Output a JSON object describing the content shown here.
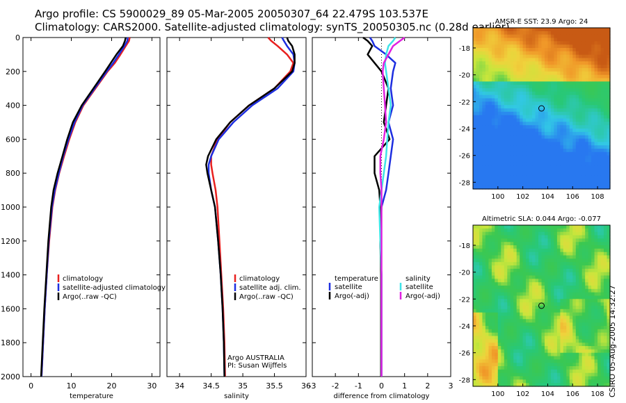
{
  "header": {
    "line1": "Argo profile: CS 5900029_89 05-Mar-2005 20050307_64 22.479S 103.537E",
    "line2": "Climatology: CARS2000. Satellite-adjusted climatology: synTS_20050305.nc (0.28d earlier)"
  },
  "side_label": "CSIRO 05-Aug-2005 14:32:27",
  "colors": {
    "climatology": "#e8201f",
    "satellite": "#1d2ee0",
    "argo": "#000000",
    "satellite_diff_s": "#3fe3e8",
    "argo_diff_s": "#e020e0",
    "frame": "#000000"
  },
  "chart_data": [
    {
      "type": "line",
      "panel": "temperature",
      "xlabel": "temperature",
      "xlim": [
        -2,
        32
      ],
      "xticks": [
        0,
        10,
        20,
        30
      ],
      "ylim": [
        2000,
        0
      ],
      "yticks": [
        0,
        200,
        400,
        600,
        800,
        1000,
        1200,
        1400,
        1600,
        1800,
        2000
      ],
      "depth": [
        0,
        20,
        50,
        100,
        150,
        200,
        300,
        400,
        500,
        600,
        700,
        800,
        900,
        1000,
        1200,
        1400,
        1600,
        1800,
        2000
      ],
      "series": [
        {
          "name": "climatology",
          "color": "climatology",
          "values": [
            24.5,
            24.3,
            23.5,
            22.2,
            20.8,
            19.0,
            16.0,
            13.0,
            11.0,
            9.5,
            8.2,
            7.0,
            6.0,
            5.3,
            4.5,
            3.9,
            3.4,
            3.0,
            2.6
          ]
        },
        {
          "name": "satellite-adjusted climatology",
          "color": "satellite",
          "values": [
            24.0,
            23.9,
            23.2,
            21.8,
            20.4,
            18.8,
            15.8,
            12.8,
            10.8,
            9.3,
            8.0,
            6.9,
            5.9,
            5.2,
            4.4,
            3.9,
            3.4,
            3.0,
            2.6
          ]
        },
        {
          "name": "Argo(..raw -QC)",
          "color": "argo",
          "values": [
            23.5,
            23.3,
            22.8,
            21.2,
            19.8,
            18.4,
            15.5,
            12.6,
            10.4,
            9.0,
            7.8,
            6.6,
            5.6,
            5.0,
            4.3,
            3.8,
            3.3,
            2.9,
            2.5
          ]
        }
      ],
      "legend": [
        "climatology",
        "satellite-adjusted climatology",
        "Argo(..raw -QC)"
      ]
    },
    {
      "type": "line",
      "panel": "salinity",
      "xlabel": "salinity",
      "xlim": [
        33.8,
        36.0
      ],
      "xticks": [
        34,
        34.5,
        35,
        35.5,
        36
      ],
      "ylim": [
        2000,
        0
      ],
      "depth": [
        0,
        20,
        50,
        100,
        150,
        200,
        300,
        400,
        500,
        600,
        700,
        750,
        800,
        900,
        1000,
        1200,
        1400,
        1600,
        1800,
        2000
      ],
      "series": [
        {
          "name": "climatology",
          "color": "climatology",
          "values": [
            35.4,
            35.45,
            35.55,
            35.7,
            35.8,
            35.75,
            35.5,
            35.1,
            34.8,
            34.6,
            34.5,
            34.5,
            34.52,
            34.57,
            34.6,
            34.63,
            34.66,
            34.69,
            34.71,
            34.72
          ]
        },
        {
          "name": "satellite adj. clim.",
          "color": "satellite",
          "values": [
            35.62,
            35.65,
            35.7,
            35.8,
            35.82,
            35.8,
            35.55,
            35.15,
            34.85,
            34.62,
            34.5,
            34.46,
            34.46,
            34.5,
            34.56,
            34.61,
            34.65,
            34.68,
            34.7,
            34.71
          ]
        },
        {
          "name": "Argo(..raw -QC)",
          "color": "argo",
          "values": [
            35.7,
            35.72,
            35.78,
            35.82,
            35.82,
            35.78,
            35.5,
            35.1,
            34.8,
            34.58,
            34.45,
            34.42,
            34.44,
            34.5,
            34.56,
            34.61,
            34.65,
            34.68,
            34.7,
            34.71
          ]
        }
      ],
      "legend": [
        "climatology",
        "satellite adj. clim.",
        "Argo(..raw -QC)"
      ],
      "annotation": [
        "Argo AUSTRALIA",
        "PI: Susan Wijffels"
      ]
    },
    {
      "type": "line",
      "panel": "difference",
      "xlabel": "difference from climatology",
      "xlim": [
        -3,
        3
      ],
      "xticks": [
        -3,
        -2,
        -1,
        0,
        1,
        2,
        3
      ],
      "ylim": [
        2000,
        0
      ],
      "depth": [
        0,
        20,
        50,
        100,
        150,
        200,
        300,
        400,
        500,
        600,
        700,
        800,
        900,
        1000,
        1200,
        1400,
        1600,
        1800,
        2000
      ],
      "series": [
        {
          "name": "temperature satellite",
          "color": "satellite",
          "values": [
            -0.5,
            -0.4,
            -0.3,
            0.2,
            0.6,
            0.5,
            0.4,
            0.5,
            0.3,
            0.5,
            0.4,
            0.3,
            0.2,
            0.0,
            -0.05,
            0.0,
            0.0,
            0.0,
            0.0
          ]
        },
        {
          "name": "temperature Argo(-adj)",
          "color": "argo",
          "values": [
            -0.8,
            -0.6,
            -0.4,
            -0.6,
            -0.3,
            0.0,
            0.3,
            0.2,
            0.1,
            0.35,
            -0.3,
            -0.3,
            -0.1,
            -0.05,
            -0.05,
            -0.02,
            -0.02,
            -0.02,
            -0.02
          ]
        },
        {
          "name": "salinity satellite",
          "color": "satellite_diff_s",
          "values": [
            0.6,
            0.5,
            0.3,
            0.2,
            0.15,
            0.2,
            0.3,
            0.4,
            0.3,
            0.25,
            0.2,
            0.1,
            0.0,
            -0.1,
            -0.05,
            0.0,
            0.0,
            0.0,
            0.0
          ]
        },
        {
          "name": "salinity Argo(-adj)",
          "color": "argo_diff_s",
          "values": [
            1.0,
            0.8,
            0.5,
            0.3,
            0.1,
            0.05,
            0.1,
            0.15,
            0.2,
            0.1,
            -0.05,
            -0.05,
            0.0,
            0.0,
            0.0,
            0.0,
            0.0,
            0.0,
            0.0
          ]
        }
      ],
      "legend_left": {
        "title": "temperature",
        "items": [
          "satellite",
          "Argo(-adj)"
        ]
      },
      "legend_right": {
        "title": "salinity",
        "items": [
          "satellite",
          "Argo(-adj)"
        ]
      }
    },
    {
      "type": "heatmap",
      "panel": "sst_map",
      "title": "AMSR-E SST: 23.9 Argo: 24",
      "xticks": [
        100,
        102,
        104,
        106,
        108
      ],
      "yticks": [
        -18,
        -20,
        -22,
        -24,
        -26,
        -28
      ],
      "xlim": [
        98,
        109
      ],
      "ylim": [
        -28.5,
        -16.5
      ],
      "marker": {
        "lon": 103.5,
        "lat": -22.5
      }
    },
    {
      "type": "heatmap",
      "panel": "sla_map",
      "title": "Altimetric SLA: 0.044 Argo: -0.077",
      "xticks": [
        100,
        102,
        104,
        106,
        108
      ],
      "yticks": [
        -18,
        -20,
        -22,
        -24,
        -26,
        -28
      ],
      "xlim": [
        98,
        109
      ],
      "ylim": [
        -28.5,
        -16.5
      ],
      "marker": {
        "lon": 103.5,
        "lat": -22.5
      }
    }
  ]
}
